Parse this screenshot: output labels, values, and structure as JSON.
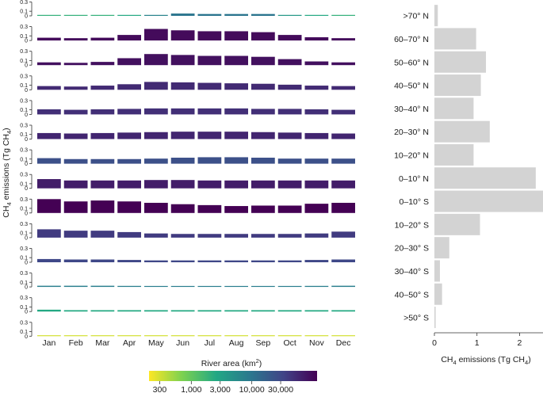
{
  "chart_data": [
    {
      "type": "bar",
      "title": "",
      "ylabel": "CH4 emissions (Tg CH4)",
      "ylabel_parts": [
        "CH",
        "4",
        " emissions (Tg CH",
        "4",
        ")"
      ],
      "xlabel": "",
      "ylim": [
        0,
        0.3
      ],
      "yticks": [
        "0.3",
        "0.1",
        "0"
      ],
      "months": [
        "Jan",
        "Feb",
        "Mar",
        "Apr",
        "May",
        "Jun",
        "Jul",
        "Aug",
        "Sep",
        "Oct",
        "Nov",
        "Dec"
      ],
      "colorbar": {
        "title": "River area (km²)",
        "title_parts": [
          "River area (km",
          "2",
          ")"
        ],
        "ticks": [
          {
            "value": 300,
            "label": "300"
          },
          {
            "value": 1000,
            "label": "1,000"
          },
          {
            "value": 3000,
            "label": "3,000"
          },
          {
            "value": 10000,
            "label": "10,000"
          },
          {
            "value": 30000,
            "label": "30,000"
          }
        ],
        "min": 200,
        "max": 120000
      },
      "series": [
        {
          "name": ">70° N",
          "values": [
            0.0,
            0.0,
            0.0,
            0.0,
            0.02,
            0.05,
            0.04,
            0.04,
            0.04,
            0.01,
            0.0,
            0.0
          ],
          "area": [
            2000,
            2000,
            2000,
            2500,
            7000,
            10000,
            10000,
            10000,
            10000,
            4000,
            2500,
            2000
          ]
        },
        {
          "name": "60–70° N",
          "values": [
            0.06,
            0.05,
            0.06,
            0.12,
            0.25,
            0.22,
            0.2,
            0.2,
            0.18,
            0.12,
            0.07,
            0.05
          ],
          "area": [
            100000,
            100000,
            100000,
            100000,
            100000,
            100000,
            100000,
            100000,
            100000,
            100000,
            100000,
            100000
          ]
        },
        {
          "name": "50–60° N",
          "values": [
            0.06,
            0.05,
            0.07,
            0.15,
            0.24,
            0.22,
            0.2,
            0.2,
            0.18,
            0.13,
            0.08,
            0.06
          ],
          "area": [
            90000,
            90000,
            90000,
            90000,
            90000,
            90000,
            90000,
            90000,
            90000,
            90000,
            90000,
            90000
          ]
        },
        {
          "name": "40–50° N",
          "values": [
            0.08,
            0.07,
            0.09,
            0.12,
            0.17,
            0.16,
            0.15,
            0.14,
            0.13,
            0.11,
            0.09,
            0.08
          ],
          "area": [
            55000,
            55000,
            55000,
            55000,
            55000,
            55000,
            55000,
            55000,
            55000,
            55000,
            55000,
            55000
          ]
        },
        {
          "name": "30–40° N",
          "values": [
            0.11,
            0.1,
            0.11,
            0.12,
            0.13,
            0.13,
            0.13,
            0.13,
            0.12,
            0.12,
            0.11,
            0.1
          ],
          "area": [
            50000,
            50000,
            50000,
            50000,
            50000,
            50000,
            50000,
            50000,
            50000,
            50000,
            50000,
            50000
          ]
        },
        {
          "name": "20–30° N",
          "values": [
            0.13,
            0.12,
            0.13,
            0.14,
            0.15,
            0.16,
            0.16,
            0.16,
            0.15,
            0.14,
            0.13,
            0.12
          ],
          "area": [
            60000,
            60000,
            60000,
            60000,
            60000,
            60000,
            60000,
            60000,
            60000,
            60000,
            60000,
            60000
          ]
        },
        {
          "name": "10–20° N",
          "values": [
            0.12,
            0.1,
            0.1,
            0.1,
            0.11,
            0.13,
            0.14,
            0.14,
            0.13,
            0.11,
            0.11,
            0.11
          ],
          "area": [
            25000,
            25000,
            25000,
            25000,
            25000,
            25000,
            25000,
            25000,
            25000,
            25000,
            25000,
            25000
          ]
        },
        {
          "name": "0–10° N",
          "values": [
            0.2,
            0.17,
            0.17,
            0.17,
            0.18,
            0.18,
            0.17,
            0.17,
            0.17,
            0.17,
            0.17,
            0.17
          ],
          "area": [
            70000,
            70000,
            70000,
            70000,
            70000,
            70000,
            70000,
            70000,
            70000,
            70000,
            70000,
            70000
          ]
        },
        {
          "name": "0–10° S",
          "values": [
            0.3,
            0.25,
            0.27,
            0.25,
            0.22,
            0.19,
            0.17,
            0.15,
            0.16,
            0.16,
            0.2,
            0.22
          ],
          "area": [
            120000,
            120000,
            120000,
            120000,
            120000,
            120000,
            120000,
            120000,
            120000,
            120000,
            120000,
            120000
          ]
        },
        {
          "name": "10–20° S",
          "values": [
            0.18,
            0.15,
            0.15,
            0.12,
            0.09,
            0.08,
            0.08,
            0.08,
            0.08,
            0.08,
            0.09,
            0.13
          ],
          "area": [
            40000,
            40000,
            40000,
            40000,
            40000,
            40000,
            40000,
            40000,
            40000,
            40000,
            40000,
            40000
          ]
        },
        {
          "name": "20–30° S",
          "values": [
            0.07,
            0.06,
            0.06,
            0.05,
            0.04,
            0.04,
            0.04,
            0.04,
            0.04,
            0.04,
            0.05,
            0.06
          ],
          "area": [
            30000,
            30000,
            30000,
            30000,
            30000,
            30000,
            30000,
            30000,
            30000,
            30000,
            30000,
            30000
          ]
        },
        {
          "name": "30–40° S",
          "values": [
            0.025,
            0.025,
            0.025,
            0.022,
            0.02,
            0.02,
            0.02,
            0.02,
            0.02,
            0.02,
            0.022,
            0.025
          ],
          "area": [
            8000,
            8000,
            8000,
            8000,
            8000,
            8000,
            8000,
            8000,
            8000,
            8000,
            8000,
            8000
          ]
        },
        {
          "name": "40–50° S",
          "values": [
            0.04,
            0.03,
            0.03,
            0.03,
            0.03,
            0.03,
            0.03,
            0.03,
            0.03,
            0.03,
            0.03,
            0.03
          ],
          "area": [
            2500,
            2500,
            2500,
            2500,
            2500,
            2500,
            2500,
            2500,
            2500,
            2500,
            2500,
            2500
          ]
        },
        {
          "name": ">50° S",
          "values": [
            0.015,
            0.01,
            0.01,
            0.01,
            0.01,
            0.008,
            0.008,
            0.008,
            0.01,
            0.01,
            0.01,
            0.01
          ],
          "area": [
            300,
            300,
            300,
            300,
            300,
            300,
            300,
            300,
            300,
            300,
            300,
            300
          ]
        }
      ]
    },
    {
      "type": "bar",
      "orientation": "horizontal",
      "title": "",
      "xlabel": "CH4 emissions (Tg CH4)",
      "xlabel_parts": [
        "CH",
        "4",
        " emissions (Tg CH",
        "4",
        ")"
      ],
      "xlim": [
        0,
        2.55
      ],
      "xticks": [
        0,
        1,
        2
      ],
      "bar_color": "#d3d3d3",
      "categories": [
        ">70° N",
        "60–70° N",
        "50–60° N",
        "40–50° N",
        "30–40° N",
        "20–30° N",
        "10–20° N",
        "0–10° N",
        "0–10° S",
        "10–20° S",
        "20–30° S",
        "30–40° S",
        "40–50° S",
        ">50° S"
      ],
      "values": [
        0.08,
        0.98,
        1.21,
        1.09,
        0.92,
        1.3,
        0.92,
        2.38,
        2.55,
        1.07,
        0.35,
        0.13,
        0.18,
        0.03
      ]
    }
  ]
}
